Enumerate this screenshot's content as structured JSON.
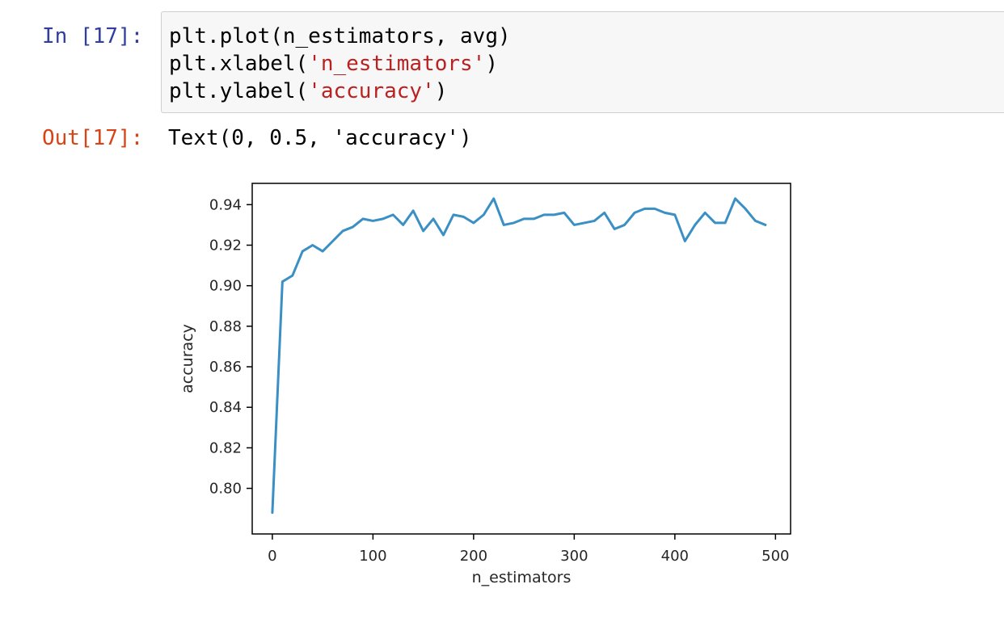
{
  "cell": {
    "in_prompt": "In [17]:",
    "out_prompt": "Out[17]:",
    "code": {
      "line1": "plt.plot(n_estimators, avg)",
      "line2_prefix": "plt.xlabel(",
      "line2_string": "'n_estimators'",
      "line2_suffix": ")",
      "line3_prefix": "plt.ylabel(",
      "line3_string": "'accuracy'",
      "line3_suffix": ")"
    },
    "output": "Text(0, 0.5, 'accuracy')"
  },
  "chart_data": {
    "type": "line",
    "title": "",
    "xlabel": "n_estimators",
    "ylabel": "accuracy",
    "xlim": [
      -20,
      515
    ],
    "ylim": [
      0.7775,
      0.9505
    ],
    "xticks": [
      0,
      100,
      200,
      300,
      400,
      500
    ],
    "xtick_labels": [
      "0",
      "100",
      "200",
      "300",
      "400",
      "500"
    ],
    "yticks": [
      0.8,
      0.82,
      0.84,
      0.86,
      0.88,
      0.9,
      0.92,
      0.94
    ],
    "ytick_labels": [
      "0.80",
      "0.82",
      "0.84",
      "0.86",
      "0.88",
      "0.90",
      "0.92",
      "0.94"
    ],
    "grid": false,
    "line_color": "#3a8fc4",
    "x": [
      0,
      10,
      20,
      30,
      40,
      50,
      60,
      70,
      80,
      90,
      100,
      110,
      120,
      130,
      140,
      150,
      160,
      170,
      180,
      190,
      200,
      210,
      220,
      230,
      240,
      250,
      260,
      270,
      280,
      290,
      300,
      310,
      320,
      330,
      340,
      350,
      360,
      370,
      380,
      390,
      400,
      410,
      420,
      430,
      440,
      450,
      460,
      470,
      480,
      490
    ],
    "y": [
      0.788,
      0.902,
      0.905,
      0.917,
      0.92,
      0.917,
      0.922,
      0.927,
      0.929,
      0.933,
      0.932,
      0.933,
      0.935,
      0.93,
      0.937,
      0.927,
      0.933,
      0.925,
      0.935,
      0.934,
      0.931,
      0.935,
      0.943,
      0.93,
      0.931,
      0.933,
      0.933,
      0.935,
      0.935,
      0.936,
      0.93,
      0.931,
      0.932,
      0.936,
      0.928,
      0.93,
      0.936,
      0.938,
      0.938,
      0.936,
      0.935,
      0.922,
      0.93,
      0.936,
      0.931,
      0.931,
      0.943,
      0.938,
      0.932,
      0.93
    ]
  }
}
